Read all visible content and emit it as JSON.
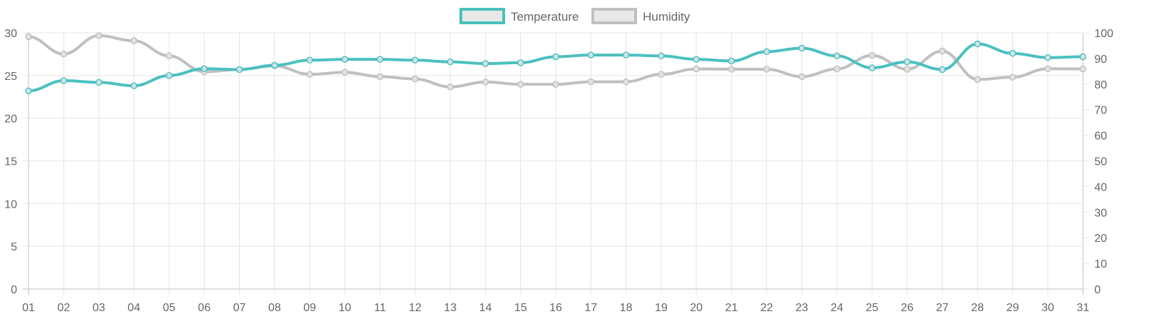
{
  "chart_data": {
    "type": "line",
    "x": [
      "01",
      "02",
      "03",
      "04",
      "05",
      "06",
      "07",
      "08",
      "09",
      "10",
      "11",
      "12",
      "13",
      "14",
      "15",
      "16",
      "17",
      "18",
      "19",
      "20",
      "21",
      "22",
      "23",
      "24",
      "25",
      "26",
      "27",
      "28",
      "29",
      "30",
      "31"
    ],
    "y_left": {
      "min": 0,
      "max": 30,
      "ticks": [
        "0",
        "5",
        "10",
        "15",
        "20",
        "25",
        "30"
      ]
    },
    "y_right": {
      "min": 0,
      "max": 100,
      "ticks": [
        "0",
        "10",
        "20",
        "30",
        "40",
        "50",
        "60",
        "70",
        "80",
        "90",
        "100"
      ]
    },
    "grid": true,
    "legend_position": "top-center",
    "series": [
      {
        "name": "Temperature",
        "axis": "left",
        "color": "#4bc0c0",
        "values": [
          23.2,
          24.4,
          24.2,
          23.8,
          25.0,
          25.8,
          25.7,
          26.2,
          26.8,
          26.9,
          26.9,
          26.8,
          26.6,
          26.4,
          26.5,
          27.2,
          27.4,
          27.4,
          27.3,
          26.9,
          26.7,
          27.8,
          28.2,
          27.3,
          25.9,
          26.6,
          25.7,
          28.7,
          27.6,
          27.1,
          27.2
        ]
      },
      {
        "name": "Humidity",
        "axis": "right",
        "color": "#c0c0c0",
        "values": [
          98.5,
          91.7,
          98.9,
          96.9,
          91.0,
          84.8,
          85.7,
          87.1,
          83.8,
          84.6,
          82.9,
          82.0,
          78.9,
          80.8,
          79.9,
          79.9,
          80.9,
          80.9,
          83.8,
          85.9,
          85.8,
          85.8,
          82.9,
          85.9,
          91.2,
          85.8,
          92.9,
          81.8,
          82.7,
          86.0,
          85.9
        ]
      }
    ]
  }
}
